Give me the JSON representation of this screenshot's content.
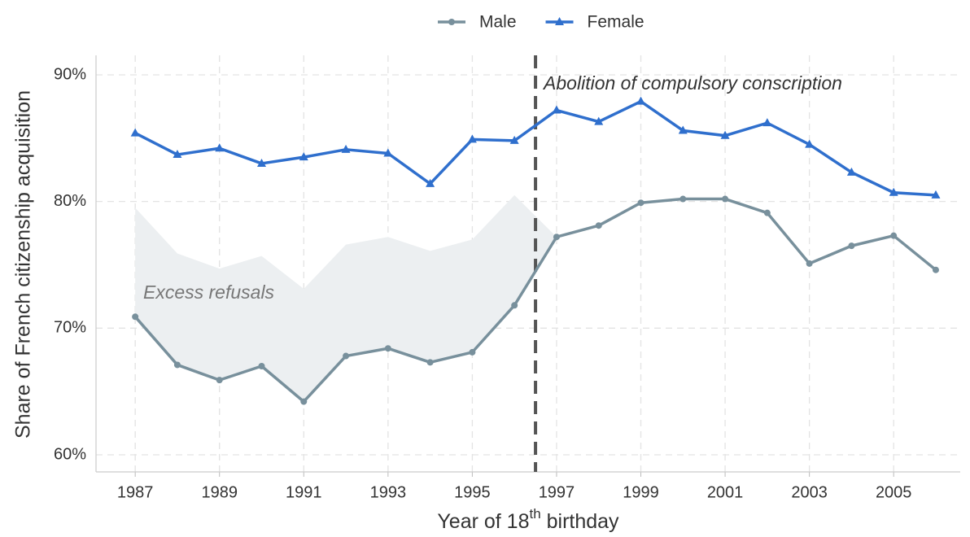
{
  "chart_data": {
    "type": "line",
    "x_label": [
      "Year of 18",
      "th",
      " birthday"
    ],
    "y_label": "Share of French citizenship acquisition",
    "x": [
      1987,
      1988,
      1989,
      1990,
      1991,
      1992,
      1993,
      1994,
      1995,
      1996,
      1997,
      1998,
      1999,
      2000,
      2001,
      2002,
      2003,
      2004,
      2005,
      2006
    ],
    "series": [
      {
        "name": "Male",
        "color": "#78909c",
        "marker": "circle",
        "values": [
          70.9,
          67.1,
          65.9,
          67.0,
          64.2,
          67.8,
          68.4,
          67.3,
          68.1,
          71.8,
          77.2,
          78.1,
          79.9,
          80.2,
          80.2,
          79.1,
          75.1,
          76.5,
          77.3,
          74.6
        ]
      },
      {
        "name": "Female",
        "color": "#2f6fcd",
        "marker": "triangle",
        "values": [
          85.4,
          83.7,
          84.2,
          83.0,
          83.5,
          84.1,
          83.8,
          81.4,
          84.9,
          84.8,
          87.2,
          86.3,
          87.9,
          85.6,
          85.2,
          86.2,
          84.5,
          82.3,
          80.7,
          80.5
        ]
      }
    ],
    "band": {
      "upper": [
        79.5,
        75.9,
        74.7,
        75.7,
        73.1,
        76.6,
        77.2,
        76.1,
        77.0,
        80.5,
        77.2,
        null,
        null,
        null,
        null,
        null,
        null,
        null,
        null,
        null
      ],
      "color": "#eceff1"
    },
    "band_label": "Excess refusals",
    "vline": {
      "x": 1996.5,
      "label": "Abolition of compulsory conscription",
      "color": "#555555"
    },
    "xlim": [
      1986.07,
      2006.58
    ],
    "ylim": [
      58.65,
      91.54
    ],
    "xticks": [
      1987,
      1989,
      1991,
      1993,
      1995,
      1997,
      1999,
      2001,
      2003,
      2005
    ],
    "yticks": [
      {
        "value": 60,
        "label": "60%"
      },
      {
        "value": 70,
        "label": "70%"
      },
      {
        "value": 80,
        "label": "80%"
      },
      {
        "value": 90,
        "label": "90%"
      }
    ],
    "grid": true,
    "legend": "top"
  }
}
